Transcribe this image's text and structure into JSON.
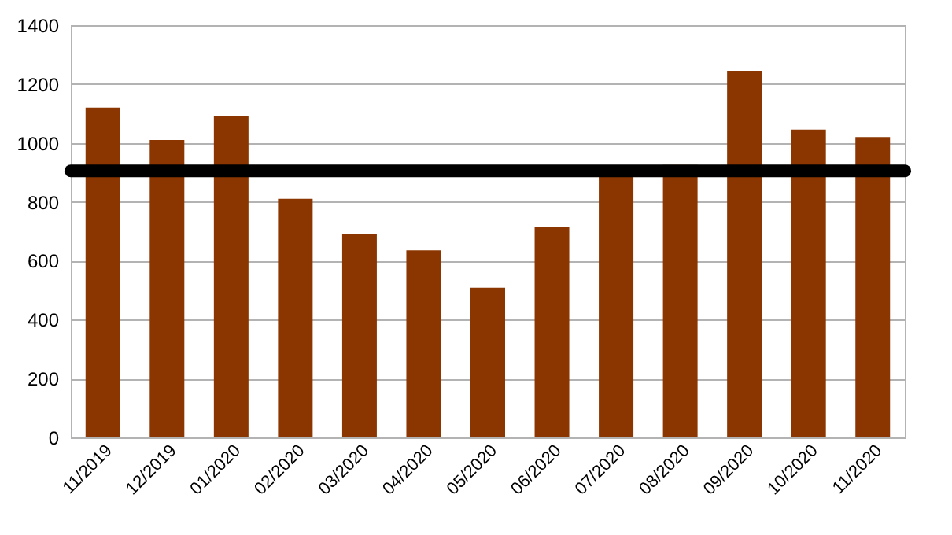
{
  "chart_data": {
    "type": "bar",
    "categories": [
      "11/2019",
      "12/2019",
      "01/2020",
      "02/2020",
      "03/2020",
      "04/2020",
      "05/2020",
      "06/2020",
      "07/2020",
      "08/2020",
      "09/2020",
      "10/2020",
      "11/2020"
    ],
    "values": [
      1120,
      1010,
      1090,
      810,
      690,
      635,
      508,
      715,
      900,
      925,
      1245,
      1045,
      1020
    ],
    "color": "#8b3600",
    "ylim": [
      0,
      1400
    ],
    "yticks": [
      0,
      200,
      400,
      600,
      800,
      1000,
      1200,
      1400
    ],
    "grid": "y",
    "ref_lines": [
      {
        "axis": "y",
        "value": 905,
        "color": "#000000"
      }
    ]
  }
}
